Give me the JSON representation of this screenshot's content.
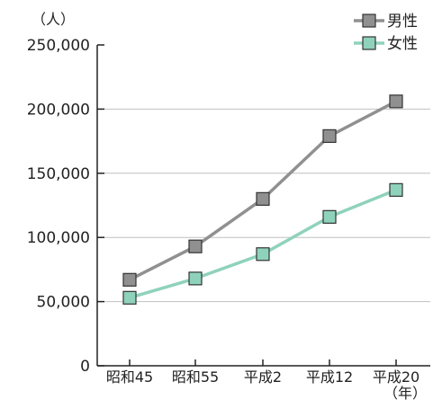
{
  "chart_data": {
    "type": "line",
    "y_unit_label": "（人）",
    "x_unit_label": "（年）",
    "categories": [
      "昭和45",
      "昭和55",
      "平成2",
      "平成12",
      "平成20"
    ],
    "ylim": [
      0,
      250000
    ],
    "y_ticks": [
      0,
      50000,
      100000,
      150000,
      200000,
      250000
    ],
    "y_tick_labels": [
      "0",
      "50,000",
      "100,000",
      "150,000",
      "200,000",
      "250,000"
    ],
    "grid": true,
    "legend_position": "top-right",
    "series": [
      {
        "name": "男性",
        "values": [
          67000,
          93000,
          130000,
          179000,
          206000
        ],
        "color": "#909090",
        "marker": "#909090"
      },
      {
        "name": "女性",
        "values": [
          53000,
          68000,
          87000,
          116000,
          137000
        ],
        "color": "#8fd2bb",
        "marker": "#8fd2bb"
      }
    ],
    "grid_color": "#c0c0c0",
    "axis_color": "#222222"
  }
}
